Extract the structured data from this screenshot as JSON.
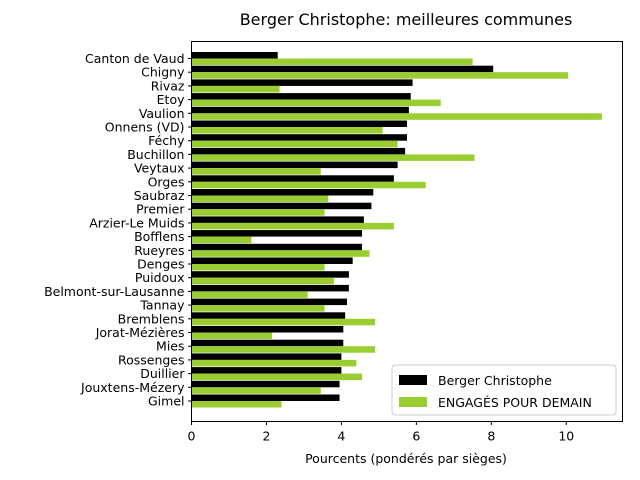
{
  "chart_data": {
    "type": "bar",
    "orientation": "horizontal",
    "title": "Berger Christophe: meilleures communes",
    "xlabel": "Pourcents (pondérés par sièges)",
    "ylabel": "",
    "xlim": [
      0,
      11.5
    ],
    "xticks": [
      0,
      2,
      4,
      6,
      8,
      10
    ],
    "grid": false,
    "legend_position": "lower-right",
    "categories": [
      "Canton de Vaud",
      "Chigny",
      "Rivaz",
      "Etoy",
      "Vaulion",
      "Onnens (VD)",
      "Féchy",
      "Buchillon",
      "Veytaux",
      "Orges",
      "Saubraz",
      "Premier",
      "Arzier-Le Muids",
      "Bofflens",
      "Rueyres",
      "Denges",
      "Puidoux",
      "Belmont-sur-Lausanne",
      "Tannay",
      "Bremblens",
      "Jorat-Mézières",
      "Mies",
      "Rossenges",
      "Duillier",
      "Jouxtens-Mézery",
      "Gimel"
    ],
    "series": [
      {
        "name": "Berger Christophe",
        "color": "#000000",
        "values": [
          2.3,
          8.05,
          5.9,
          5.85,
          5.8,
          5.75,
          5.75,
          5.7,
          5.5,
          5.4,
          4.85,
          4.8,
          4.6,
          4.55,
          4.55,
          4.3,
          4.2,
          4.2,
          4.15,
          4.1,
          4.05,
          4.05,
          4.0,
          4.0,
          3.95,
          3.95
        ]
      },
      {
        "name": "ENGAGÉS POUR DEMAIN",
        "color": "#9acd32",
        "values": [
          7.5,
          10.05,
          2.35,
          6.65,
          10.95,
          5.1,
          5.5,
          7.55,
          3.45,
          6.25,
          3.65,
          3.55,
          5.4,
          1.6,
          4.75,
          3.55,
          3.8,
          3.1,
          3.55,
          4.9,
          2.15,
          4.9,
          4.4,
          4.55,
          3.45,
          2.4
        ]
      }
    ]
  }
}
